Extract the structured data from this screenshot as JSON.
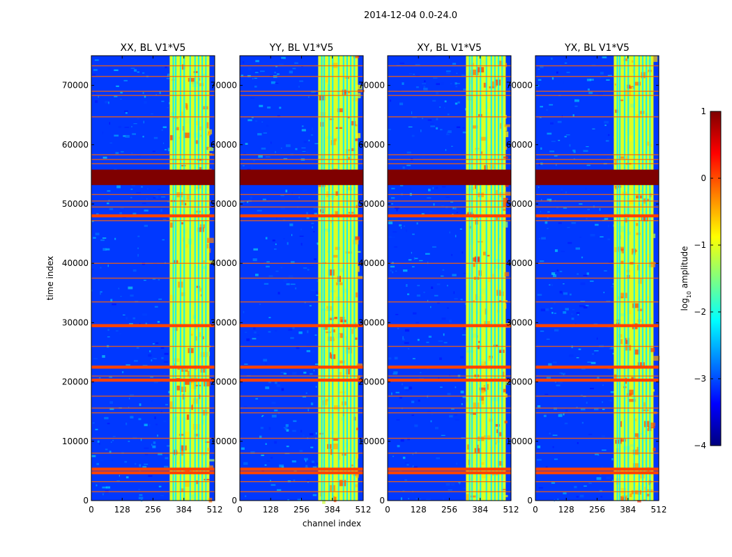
{
  "figure": {
    "title": "2014-12-04 0.0-24.0"
  },
  "chart_data": [
    {
      "type": "heatmap",
      "title": "XX, BL V1*V5",
      "xlabel": "channel index",
      "ylabel": "time index",
      "xlim": [
        0,
        512
      ],
      "ylim": [
        0,
        75000
      ],
      "xticks": [
        0,
        128,
        256,
        384,
        512
      ],
      "yticks": [
        0,
        10000,
        20000,
        30000,
        40000,
        50000,
        60000,
        70000
      ],
      "rfi_band_channels": [
        325,
        490
      ],
      "high_channels": [
        340,
        350,
        370,
        385,
        410,
        430,
        445,
        460,
        475
      ],
      "flagged_row_ranges": [
        [
          53200,
          55800
        ]
      ],
      "strong_rows": [
        4700,
        5300,
        20300,
        22500,
        29500,
        48000
      ],
      "thin_rows": [
        1500,
        3200,
        8000,
        10500,
        14800,
        15600,
        17600,
        21000,
        26000,
        33500,
        37500,
        40000,
        47200,
        49500,
        50500,
        51600,
        56800,
        57500,
        58300,
        64700,
        68300,
        69000,
        71500,
        73300
      ]
    },
    {
      "type": "heatmap",
      "title": "YY, BL V1*V5",
      "xlabel": "channel index",
      "ylabel": "",
      "xlim": [
        0,
        512
      ],
      "ylim": [
        0,
        75000
      ],
      "xticks": [
        0,
        128,
        256,
        384,
        512
      ],
      "yticks": [
        0,
        10000,
        20000,
        30000,
        40000,
        50000,
        60000,
        70000
      ],
      "rfi_band_channels": [
        325,
        490
      ],
      "high_channels": [
        340,
        350,
        370,
        385,
        410,
        430,
        445,
        460,
        475
      ],
      "flagged_row_ranges": [
        [
          53200,
          55800
        ]
      ],
      "strong_rows": [
        4700,
        5300,
        20300,
        22500,
        29500,
        48000
      ],
      "thin_rows": [
        1500,
        3200,
        8000,
        10500,
        14800,
        15600,
        17600,
        21000,
        26000,
        33500,
        37500,
        40000,
        47200,
        49500,
        50500,
        51600,
        56800,
        57500,
        58300,
        64700,
        68300,
        69000,
        71500,
        73300
      ]
    },
    {
      "type": "heatmap",
      "title": "XY, BL V1*V5",
      "xlabel": "channel index",
      "ylabel": "",
      "xlim": [
        0,
        512
      ],
      "ylim": [
        0,
        75000
      ],
      "xticks": [
        0,
        128,
        256,
        384,
        512
      ],
      "yticks": [
        0,
        10000,
        20000,
        30000,
        40000,
        50000,
        60000,
        70000
      ],
      "rfi_band_channels": [
        325,
        490
      ],
      "high_channels": [
        340,
        350,
        370,
        385,
        410,
        430,
        445,
        460,
        475
      ],
      "flagged_row_ranges": [
        [
          53200,
          55800
        ]
      ],
      "strong_rows": [
        4700,
        5300,
        20300,
        22500,
        29500,
        48000
      ],
      "thin_rows": [
        1500,
        3200,
        8000,
        10500,
        14800,
        15600,
        17600,
        21000,
        26000,
        33500,
        37500,
        40000,
        47200,
        49500,
        50500,
        51600,
        56800,
        57500,
        58300,
        64700,
        68300,
        69000,
        71500,
        73300
      ]
    },
    {
      "type": "heatmap",
      "title": "YX, BL V1*V5",
      "xlabel": "channel index",
      "ylabel": "",
      "xlim": [
        0,
        512
      ],
      "ylim": [
        0,
        75000
      ],
      "xticks": [
        0,
        128,
        256,
        384,
        512
      ],
      "yticks": [
        0,
        10000,
        20000,
        30000,
        40000,
        50000,
        60000,
        70000
      ],
      "rfi_band_channels": [
        325,
        490
      ],
      "high_channels": [
        340,
        350,
        370,
        385,
        410,
        430,
        445,
        460,
        475
      ],
      "flagged_row_ranges": [
        [
          53200,
          55800
        ]
      ],
      "strong_rows": [
        4700,
        5300,
        20300,
        22500,
        29500,
        48000
      ],
      "thin_rows": [
        1500,
        3200,
        8000,
        10500,
        14800,
        15600,
        17600,
        21000,
        26000,
        33500,
        37500,
        40000,
        47200,
        49500,
        50500,
        51600,
        56800,
        57500,
        58300,
        64700,
        68300,
        69000,
        71500,
        73300
      ]
    }
  ],
  "colorbar": {
    "label": "log10 amplitude",
    "label_main": "log",
    "label_sub": "10",
    "label_rest": " amplitude",
    "min": -4,
    "max": 1,
    "ticks": [
      1,
      0,
      -1,
      -2,
      -3,
      -4
    ],
    "colormap": "jet",
    "colors": [
      "#00007f",
      "#0000ff",
      "#0080ff",
      "#00ffff",
      "#80ff80",
      "#ffff00",
      "#ff8000",
      "#ff0000",
      "#7f0000"
    ]
  }
}
